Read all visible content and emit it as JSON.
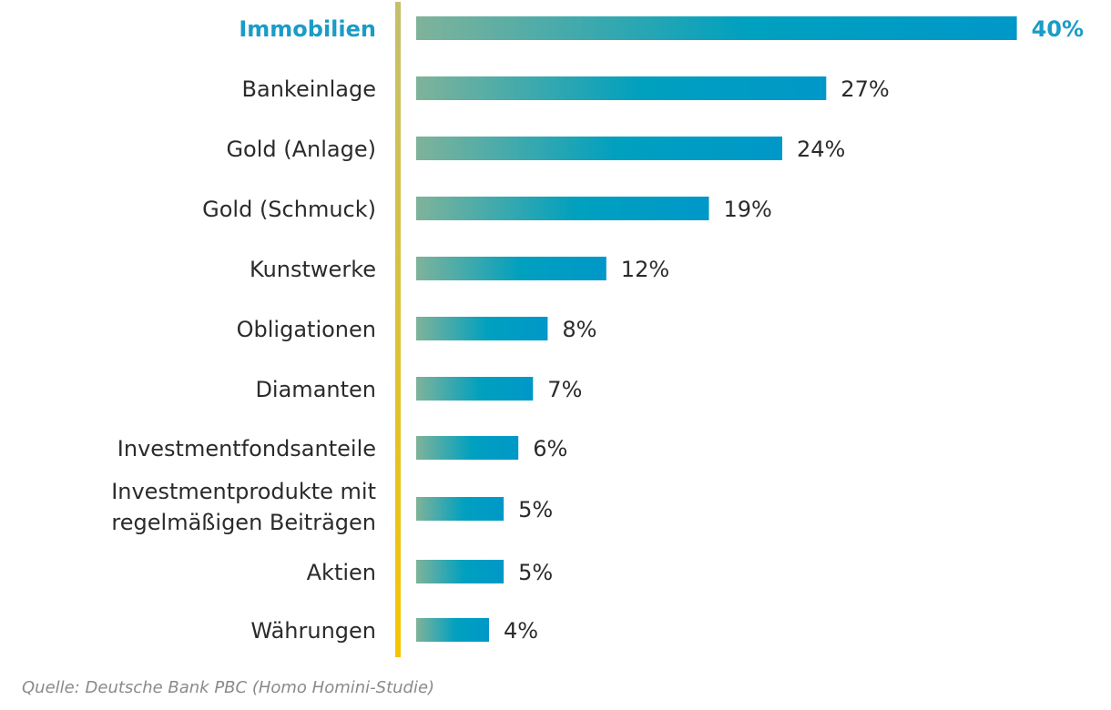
{
  "chart_data": {
    "type": "bar",
    "orientation": "horizontal",
    "title": "",
    "xlabel": "",
    "ylabel": "",
    "unit": "%",
    "categories": [
      "Immobilien",
      "Bankeinlage",
      "Gold (Anlage)",
      "Gold (Schmuck)",
      "Kunstwerke",
      "Obligationen",
      "Diamanten",
      "Investmentfondsanteile",
      "Investmentprodukte mit regelmäßigen Beiträgen",
      "Aktien",
      "Währungen"
    ],
    "category_lines": [
      [
        "Immobilien"
      ],
      [
        "Bankeinlage"
      ],
      [
        "Gold (Anlage)"
      ],
      [
        "Gold (Schmuck)"
      ],
      [
        "Kunstwerke"
      ],
      [
        "Obligationen"
      ],
      [
        "Diamanten"
      ],
      [
        "Investmentfondsanteile"
      ],
      [
        "Investmentprodukte mit",
        "regelmäßigen Beiträgen"
      ],
      [
        "Aktien"
      ],
      [
        "Währungen"
      ]
    ],
    "values": [
      40,
      27,
      24,
      19,
      12,
      8,
      7,
      6,
      5,
      5,
      4
    ],
    "value_labels": [
      "40%",
      "27%",
      "24%",
      "19%",
      "12%",
      "8%",
      "7%",
      "6%",
      "5%",
      "5%",
      "4%"
    ],
    "highlighted_index": 0,
    "xlim": [
      0,
      40
    ],
    "grid": false,
    "legend": "none",
    "source": "Quelle: Deutsche Bank PBC (Homo Homini-Studie)"
  },
  "colors": {
    "bar_gradient_start": "#7fb39a",
    "bar_gradient_mid": "#00a0bf",
    "bar_gradient_end": "#0098c8",
    "highlight_text": "#1a9cc7",
    "text": "#2b2b2b",
    "axis_top": "#c4bf6e",
    "axis_bottom": "#f5c400",
    "source_text": "#8a8a8a"
  }
}
